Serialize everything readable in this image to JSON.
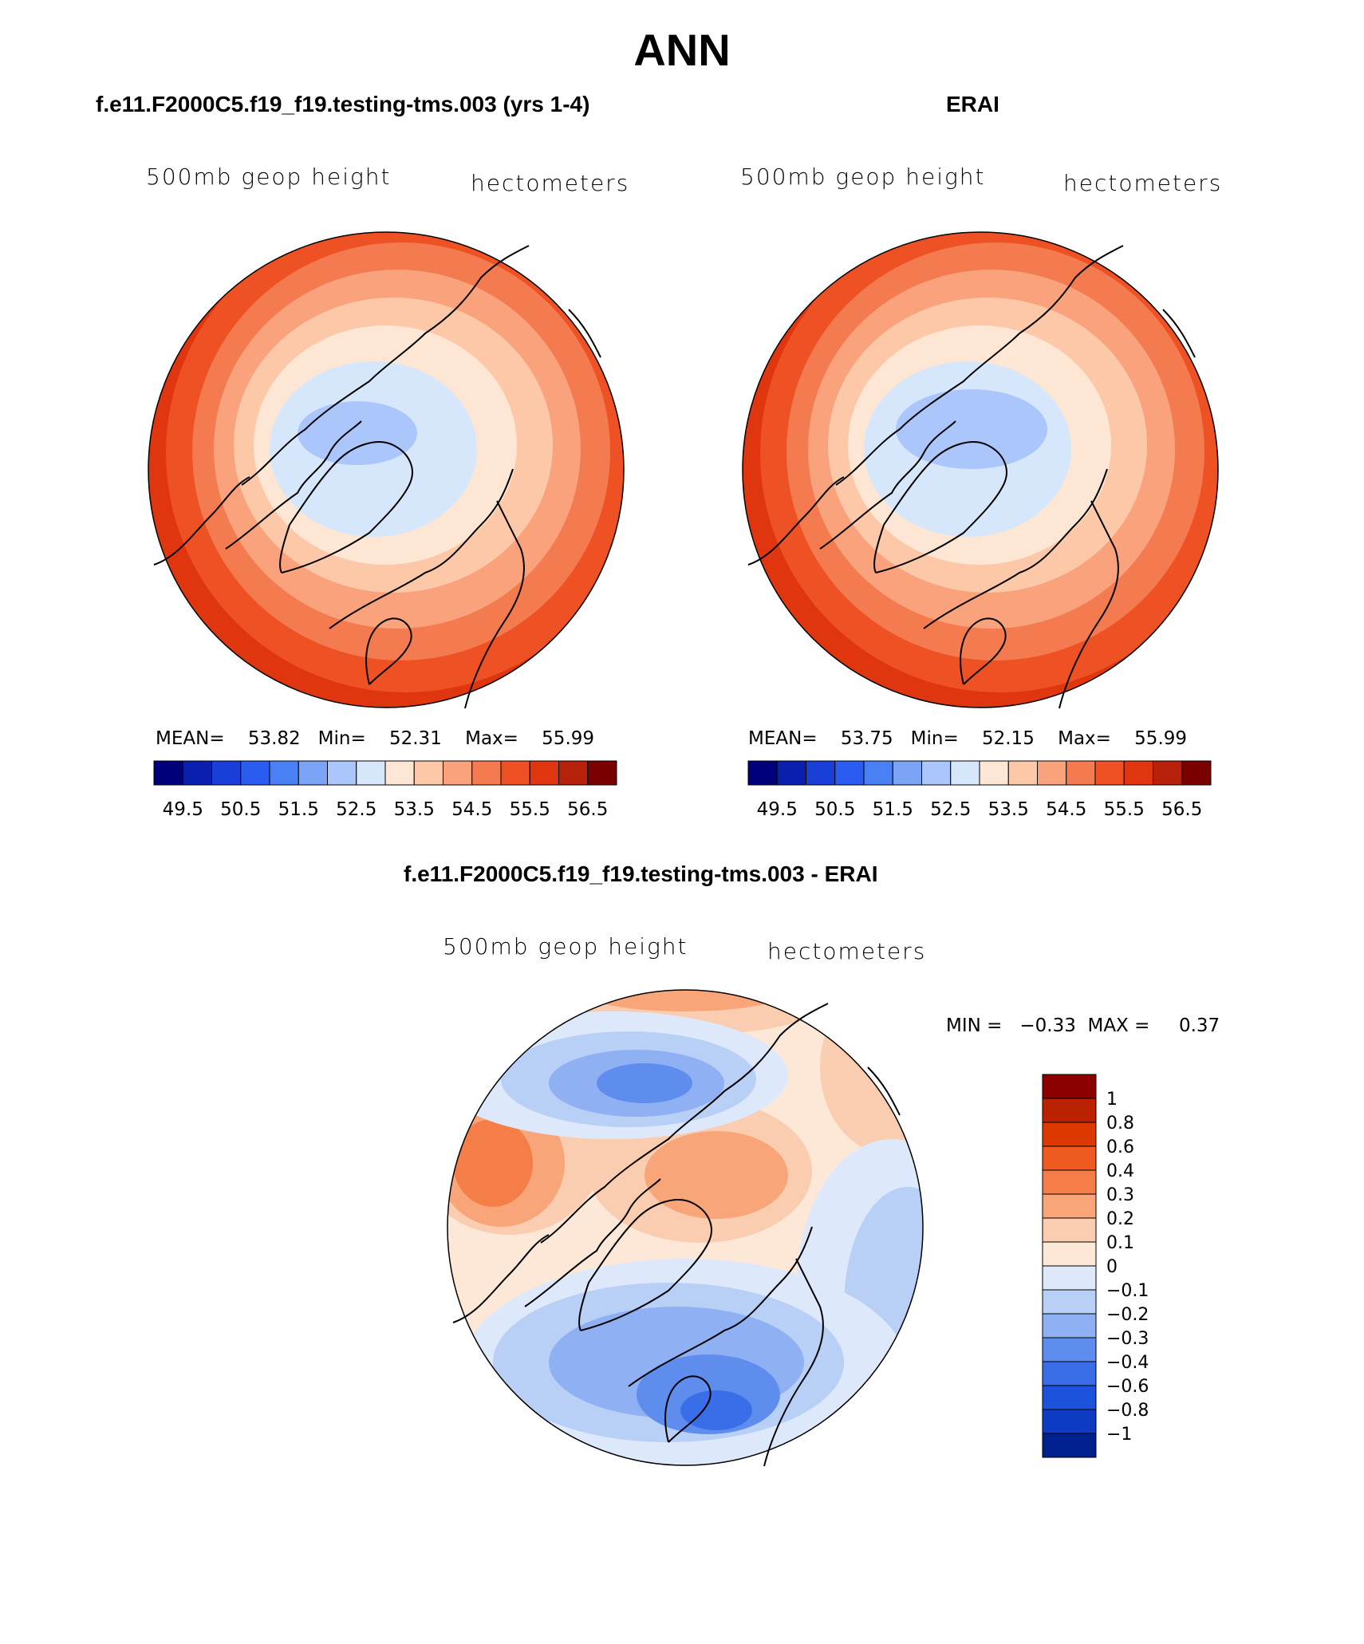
{
  "page": {
    "title": "ANN"
  },
  "chart_data": [
    {
      "type": "contour-map",
      "panel_title": "f.e11.F2000C5.f19_f19.testing-tms.003 (yrs 1-4)",
      "variable": "500mb geop height",
      "units": "hectometers",
      "stats": {
        "mean_label": "MEAN=",
        "mean": "53.82",
        "min_label": "Min=",
        "min": "52.31",
        "max_label": "Max=",
        "max": "55.99"
      },
      "colorbar_ticks": [
        "49.5",
        "50.5",
        "51.5",
        "52.5",
        "53.5",
        "54.5",
        "55.5",
        "56.5"
      ],
      "contour_levels": [
        49.5,
        50,
        50.5,
        51,
        51.5,
        52,
        52.5,
        53,
        53.5,
        54,
        54.5,
        55,
        55.5,
        56,
        56.5
      ],
      "projection": "north polar stereographic"
    },
    {
      "type": "contour-map",
      "panel_title": "ERAI",
      "variable": "500mb geop height",
      "units": "hectometers",
      "stats": {
        "mean_label": "MEAN=",
        "mean": "53.75",
        "min_label": "Min=",
        "min": "52.15",
        "max_label": "Max=",
        "max": "55.99"
      },
      "colorbar_ticks": [
        "49.5",
        "50.5",
        "51.5",
        "52.5",
        "53.5",
        "54.5",
        "55.5",
        "56.5"
      ],
      "contour_levels": [
        49.5,
        50,
        50.5,
        51,
        51.5,
        52,
        52.5,
        53,
        53.5,
        54,
        54.5,
        55,
        55.5,
        56,
        56.5
      ],
      "projection": "north polar stereographic"
    },
    {
      "type": "contour-map",
      "panel_title": "f.e11.F2000C5.f19_f19.testing-tms.003 - ERAI",
      "variable": "500mb geop height",
      "units": "hectometers",
      "stats": {
        "min_label": "MIN =",
        "min": "−0.33",
        "max_label": "MAX =",
        "max": "0.37"
      },
      "colorbar_ticks": [
        "1",
        "0.8",
        "0.6",
        "0.4",
        "0.3",
        "0.2",
        "0.1",
        "0",
        "−0.1",
        "−0.2",
        "−0.3",
        "−0.4",
        "−0.6",
        "−0.8",
        "−1"
      ],
      "projection": "north polar stereographic"
    }
  ],
  "colors": {
    "abs_scale": [
      "#00007a",
      "#0a1fae",
      "#1a3fd6",
      "#2b5cf0",
      "#4a80f5",
      "#7aa3f5",
      "#aac6fa",
      "#d6e7fb",
      "#fde6d4",
      "#fcc8a8",
      "#f9a27c",
      "#f47a50",
      "#ee5224",
      "#e0360f",
      "#b5210a",
      "#7a0000"
    ],
    "diff_scale": [
      "#8c0000",
      "#bb2200",
      "#dd3800",
      "#ef5a20",
      "#f57e48",
      "#f8a57a",
      "#fbcdb0",
      "#fde8d8",
      "#dde8fb",
      "#b8cff6",
      "#8fb0f2",
      "#5e8ded",
      "#3a6ee8",
      "#1d52dc",
      "#0d3bc2",
      "#00208e"
    ],
    "coastline": "#000000"
  }
}
